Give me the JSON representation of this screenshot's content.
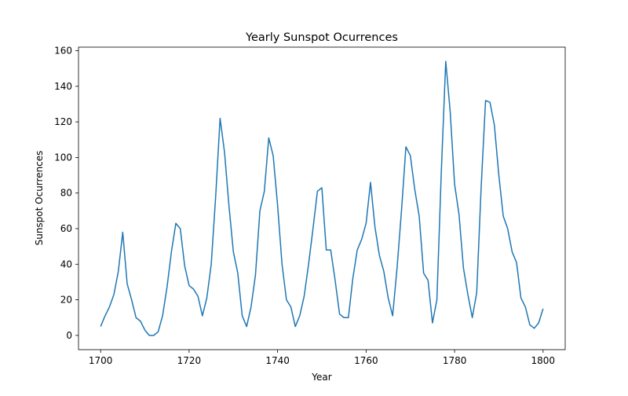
{
  "chart_data": {
    "type": "line",
    "title": "Yearly Sunspot Ocurrences",
    "xlabel": "Year",
    "ylabel": "Sunspot Ocurrences",
    "xlim": [
      1695,
      1805
    ],
    "ylim": [
      -8,
      162
    ],
    "xticks": [
      1700,
      1720,
      1740,
      1760,
      1780,
      1800
    ],
    "yticks": [
      0,
      20,
      40,
      60,
      80,
      100,
      120,
      140,
      160
    ],
    "grid": false,
    "legend": "none",
    "series_color": "#1f77b4",
    "series": [
      {
        "x": [
          1700,
          1701,
          1702,
          1703,
          1704,
          1705,
          1706,
          1707,
          1708,
          1709,
          1710,
          1711,
          1712,
          1713,
          1714,
          1715,
          1716,
          1717,
          1718,
          1719,
          1720,
          1721,
          1722,
          1723,
          1724,
          1725,
          1726,
          1727,
          1728,
          1729,
          1730,
          1731,
          1732,
          1733,
          1734,
          1735,
          1736,
          1737,
          1738,
          1739,
          1740,
          1741,
          1742,
          1743,
          1744,
          1745,
          1746,
          1747,
          1748,
          1749,
          1750,
          1751,
          1752,
          1753,
          1754,
          1755,
          1756,
          1757,
          1758,
          1759,
          1760,
          1761,
          1762,
          1763,
          1764,
          1765,
          1766,
          1767,
          1768,
          1769,
          1770,
          1771,
          1772,
          1773,
          1774,
          1775,
          1776,
          1777,
          1778,
          1779,
          1780,
          1781,
          1782,
          1783,
          1784,
          1785,
          1786,
          1787,
          1788,
          1789,
          1790,
          1791,
          1792,
          1793,
          1794,
          1795,
          1796,
          1797,
          1798,
          1799,
          1800
        ],
        "values": [
          5,
          11,
          16,
          23,
          36,
          58,
          29,
          20,
          10,
          8,
          3,
          0,
          0,
          2,
          11,
          27,
          47,
          63,
          60,
          39,
          28,
          26,
          22,
          11,
          21,
          40,
          78,
          122,
          103,
          73,
          47,
          35,
          11,
          5,
          16,
          34,
          70,
          81,
          111,
          101,
          73,
          40,
          20,
          16,
          5,
          11,
          22,
          40,
          60,
          81,
          83,
          48,
          48,
          31,
          12,
          10,
          10,
          32,
          48,
          54,
          63,
          86,
          61,
          45,
          36,
          21,
          11,
          38,
          70,
          106,
          101,
          82,
          67,
          35,
          31,
          7,
          20,
          92,
          154,
          126,
          85,
          68,
          38,
          23,
          10,
          24,
          83,
          132,
          131,
          118,
          90,
          67,
          60,
          47,
          41,
          21,
          16,
          6,
          4,
          7,
          15
        ]
      }
    ]
  }
}
